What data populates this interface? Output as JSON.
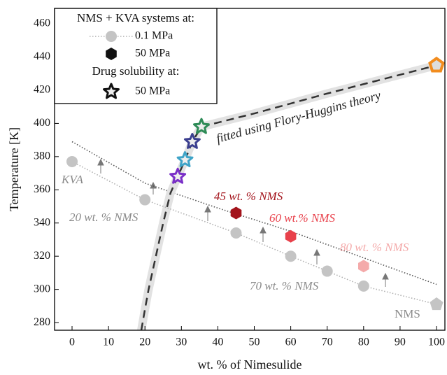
{
  "chart_data": {
    "type": "scatter",
    "x_label": "wt. % of Nimesulide",
    "y_label": "Temperature [K]",
    "xlim": [
      -4.8,
      102.3
    ],
    "ylim": [
      275.4,
      469.3
    ],
    "xticks": [
      0,
      10,
      20,
      30,
      40,
      50,
      60,
      70,
      80,
      90,
      100
    ],
    "yticks": [
      280,
      300,
      320,
      340,
      360,
      380,
      400,
      420,
      440,
      460
    ],
    "legend_headers": [
      "NMS + KVA systems at:",
      "Drug solubility at:"
    ],
    "series": [
      {
        "name": "0.1 MPa",
        "marker": "circle",
        "color": "#c4c4c4",
        "line": "dotted",
        "line_color": "#b0b0b0",
        "x": [
          0,
          20,
          45,
          60,
          70,
          80,
          100
        ],
        "values": [
          377,
          354,
          334,
          320,
          311,
          302,
          291
        ],
        "markers": [
          "circle",
          "circle",
          "circle",
          "circle",
          "circle",
          "circle",
          "pentagon"
        ],
        "colors": [
          "#c4c4c4",
          "#c4c4c4",
          "#c4c4c4",
          "#c4c4c4",
          "#c4c4c4",
          "#c4c4c4",
          "#c4c4c4"
        ]
      },
      {
        "name": "50 MPa",
        "marker": "hexagon",
        "color": "#111111",
        "x": [
          45,
          60,
          80,
          100
        ],
        "values": [
          346,
          332,
          314,
          435
        ],
        "markers": [
          "hexagon",
          "hexagon",
          "hexagon",
          "pentagon"
        ],
        "colors": [
          "#a3141c",
          "#e8414b",
          "#f4aaaa",
          "#f28c1e"
        ]
      },
      {
        "name": "50 MPa",
        "marker": "star",
        "color": "#111111",
        "x": [
          29,
          31,
          33,
          35.5
        ],
        "values": [
          368,
          378,
          389,
          398
        ],
        "markers": [
          "star",
          "star",
          "star",
          "star"
        ],
        "colors": [
          "#7a2fc8",
          "#3fa4c8",
          "#3b3f8f",
          "#2e8b57"
        ]
      }
    ],
    "lines": [
      {
        "style": "dotted",
        "color": "#555555",
        "x": [
          0,
          20,
          40,
          60,
          80,
          100
        ],
        "values": [
          389,
          364,
          349,
          335,
          319,
          303
        ]
      },
      {
        "style": "dashed",
        "color": "#333333",
        "band_color": "#e2e2e2",
        "x": [
          19,
          20,
          21,
          23,
          25,
          27,
          29,
          31,
          33,
          35.5,
          50,
          70,
          100
        ],
        "values": [
          275.4,
          288,
          300,
          320,
          340,
          358,
          368,
          378,
          389,
          398,
          406,
          418,
          435
        ]
      }
    ],
    "annotations": [
      {
        "text": "KVA",
        "color": "#8a8a8a",
        "italic": true
      },
      {
        "text": "20 wt. % NMS",
        "color": "#8a8a8a",
        "italic": true
      },
      {
        "text": "45 wt. % NMS",
        "color": "#a3141c",
        "italic": true
      },
      {
        "text": "60 wt.% NMS",
        "color": "#e8414b",
        "italic": true
      },
      {
        "text": "80 wt. % NMS",
        "color": "#f4aaaa",
        "italic": true
      },
      {
        "text": "70 wt. % NMS",
        "color": "#8a8a8a",
        "italic": true
      },
      {
        "text": "NMS",
        "color": "#8a8a8a",
        "italic": false
      },
      {
        "text": "fitted using Flory-Huggins theory",
        "color": "#222222",
        "italic": true
      }
    ]
  }
}
